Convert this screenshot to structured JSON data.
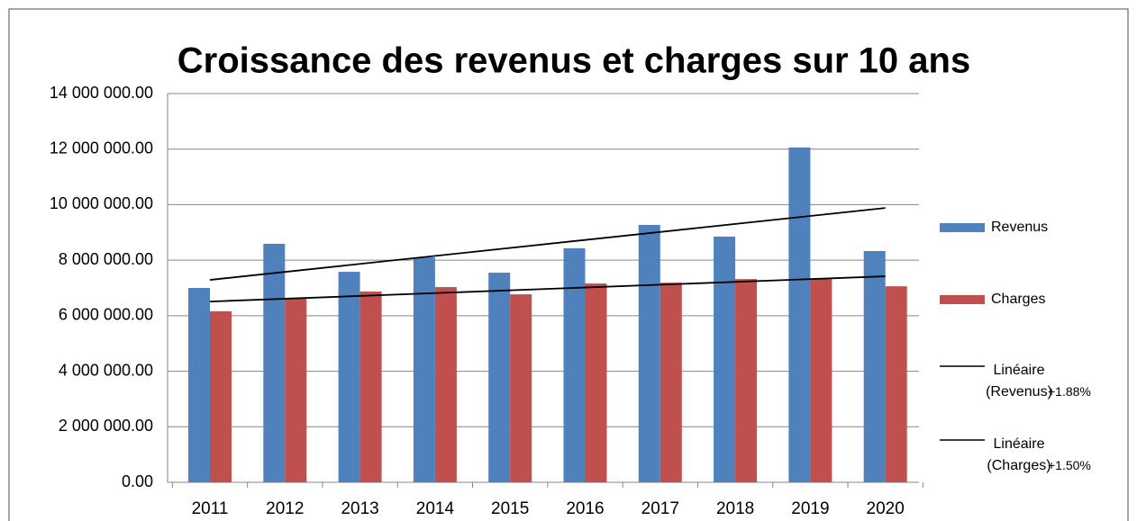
{
  "chart_data": {
    "type": "bar",
    "title": "Croissance des revenus et charges sur 10 ans",
    "categories": [
      "2011",
      "2012",
      "2013",
      "2014",
      "2015",
      "2016",
      "2017",
      "2018",
      "2019",
      "2020"
    ],
    "series": [
      {
        "name": "Revenus",
        "color": "#4f81bd",
        "values": [
          7000000,
          8590000,
          7580000,
          8100000,
          7550000,
          8430000,
          9270000,
          8850000,
          12060000,
          8330000
        ]
      },
      {
        "name": "Charges",
        "color": "#c0504d",
        "values": [
          6160000,
          6610000,
          6870000,
          7030000,
          6770000,
          7160000,
          7190000,
          7320000,
          7320000,
          7060000
        ]
      }
    ],
    "trendlines": [
      {
        "name": "Linéaire (Revenus)",
        "annotation": "+1.88%",
        "color": "#000000",
        "values": [
          7290000,
          9880000
        ]
      },
      {
        "name": "Linéaire (Charges)",
        "annotation": "+1.50%",
        "color": "#000000",
        "values": [
          6510000,
          7420000
        ]
      }
    ],
    "ylim": [
      0,
      14000000
    ],
    "yticks": [
      {
        "value": 0,
        "label": "0.00"
      },
      {
        "value": 2000000,
        "label": "2 000 000.00"
      },
      {
        "value": 4000000,
        "label": "4 000 000.00"
      },
      {
        "value": 6000000,
        "label": "6 000 000.00"
      },
      {
        "value": 8000000,
        "label": "8 000 000.00"
      },
      {
        "value": 10000000,
        "label": "10 000 000.00"
      },
      {
        "value": 12000000,
        "label": "12 000 000.00"
      },
      {
        "value": 14000000,
        "label": "14 000 000.00"
      }
    ],
    "grid": true,
    "legend": "right"
  }
}
